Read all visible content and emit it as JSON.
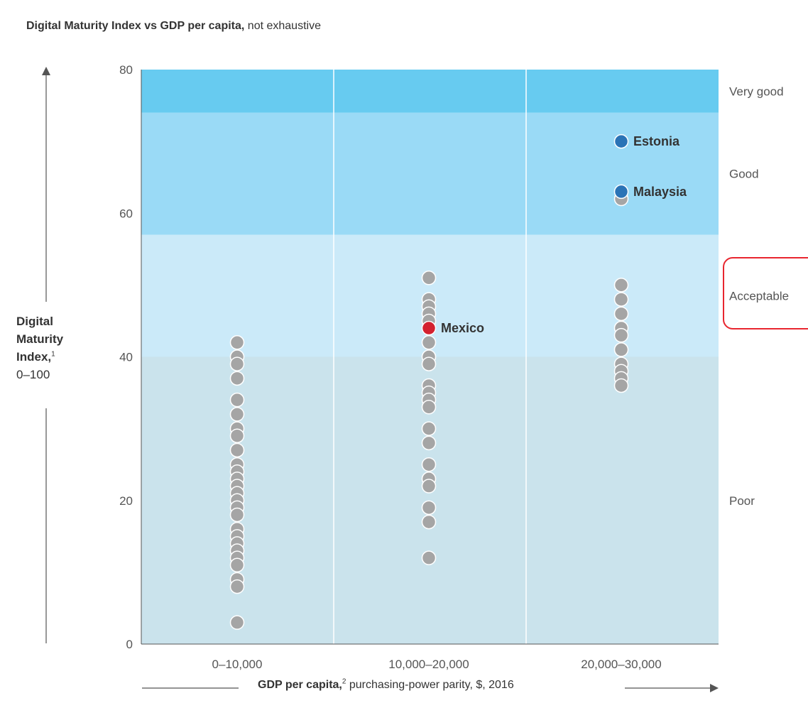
{
  "title": {
    "bold": "Digital Maturity Index vs GDP per capita,",
    "rest": "not exhaustive"
  },
  "axis_y": {
    "label_bold_1": "Digital",
    "label_bold_2": "Maturity",
    "label_bold_3": "Index,",
    "label_sup": "1",
    "label_range": "0–100"
  },
  "axis_x": {
    "label_bold": "GDP per capita,",
    "label_sup": "2",
    "label_rest": "purchasing-power parity, $, 2016"
  },
  "chart_data": {
    "type": "scatter",
    "title": "Digital Maturity Index vs GDP per capita, not exhaustive",
    "xlabel": "GDP per capita, purchasing-power parity, $, 2016",
    "ylabel": "Digital Maturity Index, 0–100",
    "categories": [
      "0–10,000",
      "10,000–20,000",
      "20,000–30,000"
    ],
    "ylim": [
      0,
      80
    ],
    "yticks": [
      0,
      20,
      40,
      60,
      80
    ],
    "bands": [
      {
        "label": "Poor",
        "from": 0,
        "to": 40,
        "color": "#cae3ec"
      },
      {
        "label": "Acceptable",
        "from": 40,
        "to": 57,
        "color": "#cbeaf9"
      },
      {
        "label": "Good",
        "from": 57,
        "to": 74,
        "color": "#9adaf6"
      },
      {
        "label": "Very good",
        "from": 74,
        "to": 80,
        "color": "#67cbf0"
      }
    ],
    "series": [
      {
        "category": "0–10,000",
        "color": "#a5a5a5",
        "values": [
          42,
          40,
          39,
          37,
          34,
          32,
          30,
          29,
          27,
          25,
          24,
          23,
          22,
          21,
          20,
          19,
          18,
          16,
          15,
          14,
          13,
          12,
          11,
          9,
          8,
          3
        ]
      },
      {
        "category": "10,000–20,000",
        "color": "#a5a5a5",
        "values": [
          51,
          48,
          47,
          46,
          45,
          42,
          40,
          39,
          36,
          35,
          34,
          33,
          30,
          28,
          25,
          23,
          22,
          19,
          17,
          12
        ]
      },
      {
        "category": "20,000–30,000",
        "color": "#a5a5a5",
        "values": [
          50,
          48,
          46,
          44,
          43,
          41,
          39,
          38,
          37,
          36,
          62
        ]
      }
    ],
    "highlights": [
      {
        "label": "Estonia",
        "category": "20,000–30,000",
        "value": 70,
        "color": "#2a73b6"
      },
      {
        "label": "Malaysia",
        "category": "20,000–30,000",
        "value": 63,
        "color": "#2a73b6"
      },
      {
        "label": "Mexico",
        "category": "10,000–20,000",
        "value": 44,
        "color": "#d3212f"
      }
    ]
  }
}
